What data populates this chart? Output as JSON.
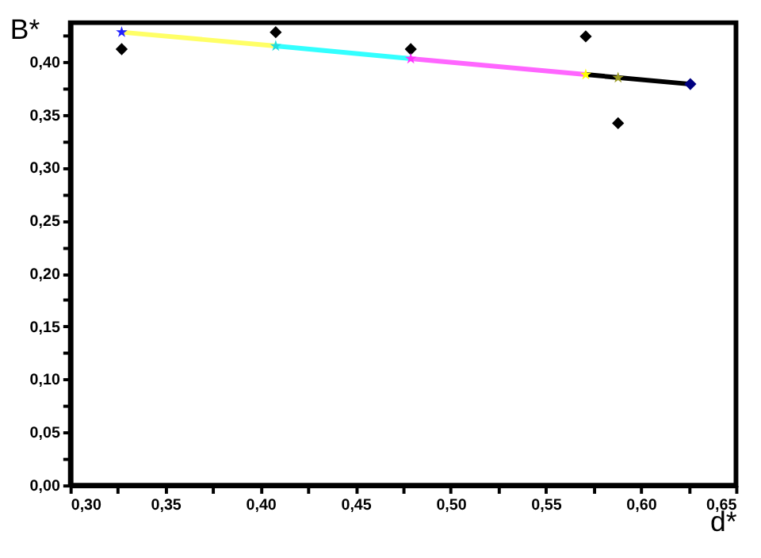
{
  "chart_data": {
    "type": "scatter",
    "xlabel": "d*",
    "ylabel": "B*",
    "xlim": [
      0.3,
      0.65
    ],
    "ylim": [
      0,
      0.437
    ],
    "xticks": [
      {
        "value": 0.3,
        "label": "0,30"
      },
      {
        "value": 0.325,
        "label": null
      },
      {
        "value": 0.35,
        "label": "0,35"
      },
      {
        "value": 0.375,
        "label": null
      },
      {
        "value": 0.4,
        "label": "0,40"
      },
      {
        "value": 0.425,
        "label": null
      },
      {
        "value": 0.45,
        "label": "0,45"
      },
      {
        "value": 0.475,
        "label": null
      },
      {
        "value": 0.5,
        "label": "0,50"
      },
      {
        "value": 0.525,
        "label": null
      },
      {
        "value": 0.55,
        "label": "0,55"
      },
      {
        "value": 0.575,
        "label": null
      },
      {
        "value": 0.6,
        "label": "0,60"
      },
      {
        "value": 0.625,
        "label": null
      },
      {
        "value": 0.65,
        "label": "0,65"
      }
    ],
    "yticks": [
      {
        "value": 0,
        "label": "0,00"
      },
      {
        "value": 0.025,
        "label": null
      },
      {
        "value": 0.05,
        "label": "0,05"
      },
      {
        "value": 0.075,
        "label": null
      },
      {
        "value": 0.1,
        "label": "0,10"
      },
      {
        "value": 0.125,
        "label": null
      },
      {
        "value": 0.15,
        "label": "0,15"
      },
      {
        "value": 0.175,
        "label": null
      },
      {
        "value": 0.2,
        "label": "0,20"
      },
      {
        "value": 0.225,
        "label": null
      },
      {
        "value": 0.25,
        "label": "0,25"
      },
      {
        "value": 0.275,
        "label": null
      },
      {
        "value": 0.3,
        "label": "0,30"
      },
      {
        "value": 0.325,
        "label": null
      },
      {
        "value": 0.35,
        "label": "0,35"
      },
      {
        "value": 0.375,
        "label": null
      },
      {
        "value": 0.4,
        "label": "0,40"
      },
      {
        "value": 0.425,
        "label": null
      }
    ],
    "grid": false,
    "legend": false,
    "series": [
      {
        "type": "line",
        "color": "#ffff66",
        "x": [
          0.327,
          0.408
        ],
        "values": [
          0.428,
          0.415
        ],
        "marker": "none",
        "line_style": "solid"
      },
      {
        "type": "line",
        "color": "#33ffff",
        "x": [
          0.408,
          0.479
        ],
        "values": [
          0.415,
          0.403
        ],
        "marker": "none",
        "line_style": "solid"
      },
      {
        "type": "line",
        "color": "#ff66ff",
        "x": [
          0.479,
          0.571
        ],
        "values": [
          0.403,
          0.388
        ],
        "marker": "none",
        "line_style": "solid"
      },
      {
        "type": "line",
        "color": "#000000",
        "x": [
          0.571,
          0.626
        ],
        "values": [
          0.388,
          0.379
        ],
        "marker": "none",
        "line_style": "solid"
      },
      {
        "marker": "diamond",
        "color": "#000000",
        "x": [
          0.327,
          0.408,
          0.479,
          0.571,
          0.588
        ],
        "values": [
          0.412,
          0.428,
          0.412,
          0.424,
          0.342
        ]
      },
      {
        "marker": "star",
        "x": [
          0.327,
          0.408,
          0.479,
          0.571,
          0.588
        ],
        "values": [
          0.428,
          0.415,
          0.403,
          0.388,
          0.385
        ],
        "colors": [
          "#2222ff",
          "#22dddd",
          "#ff33ff",
          "#ffff00",
          "#999922"
        ]
      },
      {
        "marker": "diamond",
        "color": "#000080",
        "x": [
          0.626
        ],
        "values": [
          0.379
        ]
      }
    ]
  }
}
